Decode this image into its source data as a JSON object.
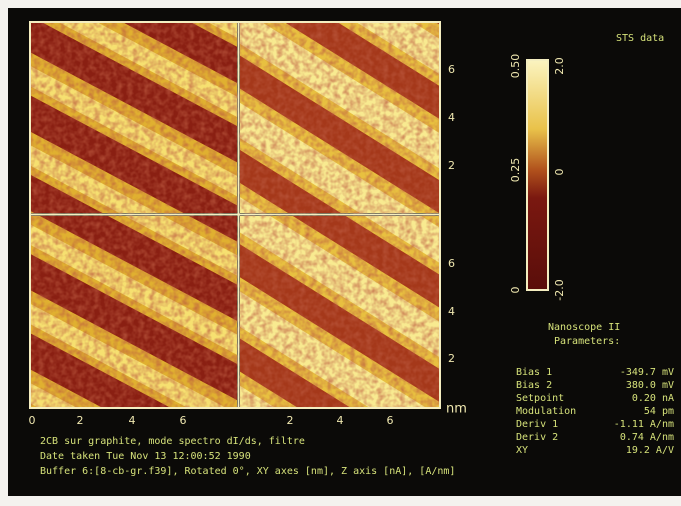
{
  "header": {
    "title": "STS data"
  },
  "colorbar": {
    "left_labels": [
      "0.50",
      "0.25",
      "0"
    ],
    "right_labels": [
      "2.0",
      "0",
      "-2.0"
    ]
  },
  "axes": {
    "top_y_ticks": [
      "6",
      "4",
      "2"
    ],
    "bottom_y_ticks": [
      "6",
      "4",
      "2"
    ],
    "x_ticks": [
      "0",
      "2",
      "4",
      "6",
      "2",
      "4",
      "6"
    ],
    "unit": "nm"
  },
  "parameters": {
    "title": "Nanoscope II",
    "subtitle": "Parameters:",
    "rows": [
      [
        "Bias 1",
        "-349.7 mV"
      ],
      [
        "Bias 2",
        "380.0 mV"
      ],
      [
        "Setpoint",
        "0.20 nA"
      ],
      [
        "Modulation",
        "54 pm"
      ],
      [
        "Deriv 1",
        "-1.11 A/nm"
      ],
      [
        "Deriv 2",
        "0.74 A/nm"
      ],
      [
        "XY",
        "19.2 A/V"
      ]
    ]
  },
  "caption": [
    "2CB sur graphite, mode spectro dI/ds, filtre",
    "Date taken Tue Nov 13 12:00:52 1990",
    "Buffer 6:[8-cb-gr.f39], Rotated 0°, XY axes [nm], Z axis [nA], [A/nm]"
  ]
}
